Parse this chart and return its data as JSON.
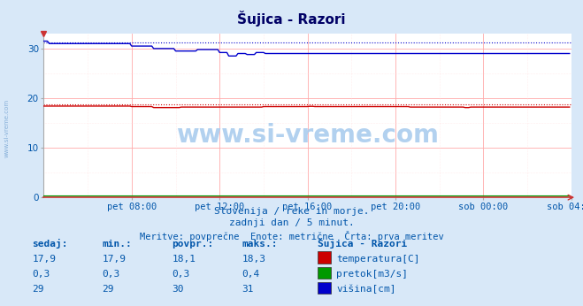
{
  "title": "Šujica - Razori",
  "bg_color": "#d8e8f8",
  "plot_bg_color": "#ffffff",
  "xlabel_ticks": [
    "pet 08:00",
    "pet 12:00",
    "pet 16:00",
    "pet 20:00",
    "sob 00:00",
    "sob 04:00"
  ],
  "ylabel_ticks": [
    0,
    10,
    20,
    30
  ],
  "ylim": [
    0,
    33
  ],
  "xlim": [
    0,
    288
  ],
  "subtitle1": "Slovenija / reke in morje.",
  "subtitle2": "zadnji dan / 5 minut.",
  "subtitle3": "Meritve: povprečne  Enote: metrične  Črta: prva meritev",
  "table_header": [
    "sedaj:",
    "min.:",
    "povpr.:",
    "maks.:",
    "Šujica - Razori"
  ],
  "table_rows": [
    [
      "17,9",
      "17,9",
      "18,1",
      "18,3",
      "temperatura[C]",
      "#cc0000"
    ],
    [
      "0,3",
      "0,3",
      "0,3",
      "0,4",
      "pretok[m3/s]",
      "#009900"
    ],
    [
      "29",
      "29",
      "30",
      "31",
      "višina[cm]",
      "#0000cc"
    ]
  ],
  "watermark": "www.si-vreme.com",
  "watermark_color": "#aaccee",
  "temp_color": "#cc0000",
  "flow_color": "#009900",
  "height_color": "#0000cc",
  "title_color": "#000066",
  "text_color": "#0055aa",
  "tick_color": "#0055aa",
  "temp_ref": 18.8,
  "height_ref": 31.3,
  "flow_ref": 0.3
}
